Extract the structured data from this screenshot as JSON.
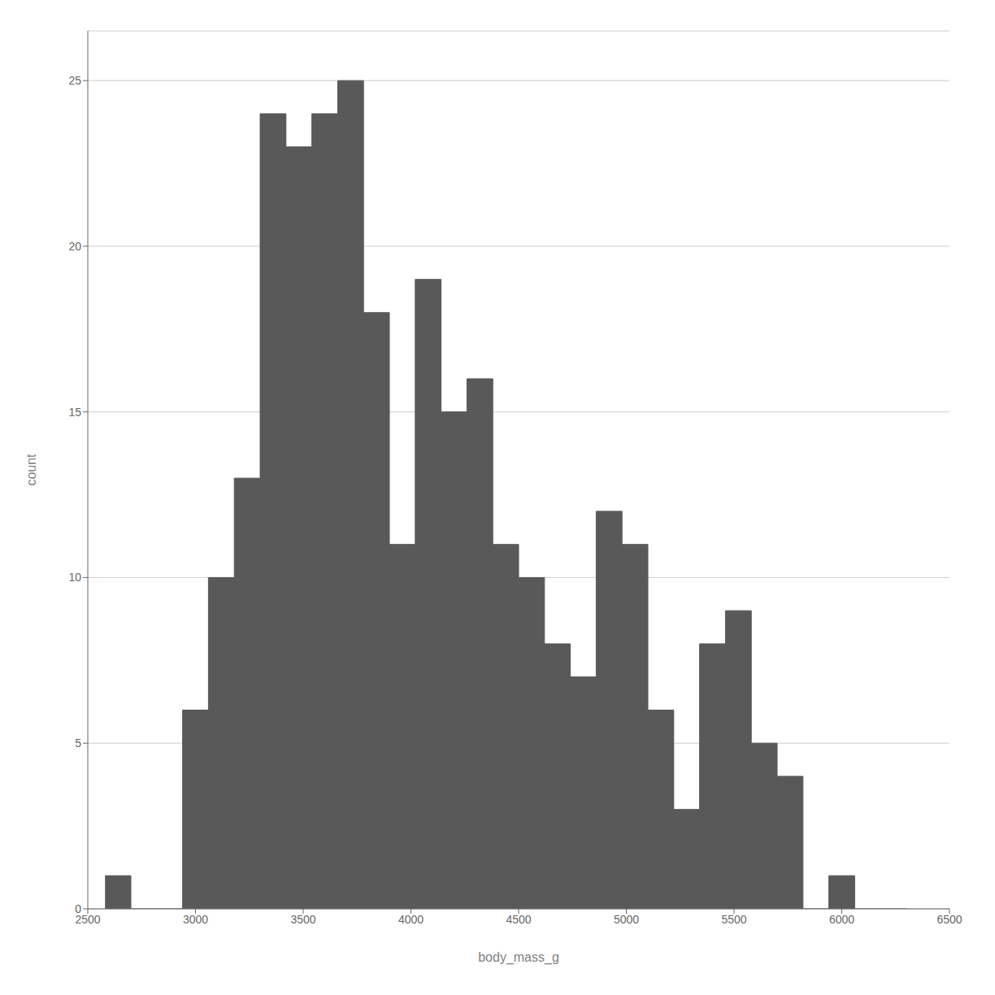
{
  "chart_data": {
    "type": "histogram",
    "xlabel": "body_mass_g",
    "ylabel": "count",
    "color": "#595959",
    "bins": [
      2580,
      2700,
      2820,
      2940,
      3060,
      3180,
      3300,
      3420,
      3540,
      3660,
      3780,
      3900,
      4020,
      4140,
      4260,
      4380,
      4500,
      4620,
      4740,
      4860,
      4980,
      5100,
      5220,
      5340,
      5460,
      5580,
      5700,
      5820,
      5940,
      6060,
      6180,
      6300
    ],
    "values": [
      1,
      0,
      0,
      6,
      10,
      13,
      24,
      23,
      24,
      25,
      18,
      11,
      19,
      15,
      16,
      11,
      10,
      8,
      7,
      12,
      11,
      6,
      3,
      8,
      9,
      5,
      4,
      0,
      1,
      0,
      0
    ],
    "xlim": [
      2500,
      6500
    ],
    "ylim": [
      0,
      26.5
    ],
    "xticks": [
      2500,
      3000,
      3500,
      4000,
      4500,
      5000,
      5500,
      6000,
      6500
    ],
    "yticks": [
      0,
      5,
      10,
      15,
      20,
      25
    ],
    "grid": true
  }
}
